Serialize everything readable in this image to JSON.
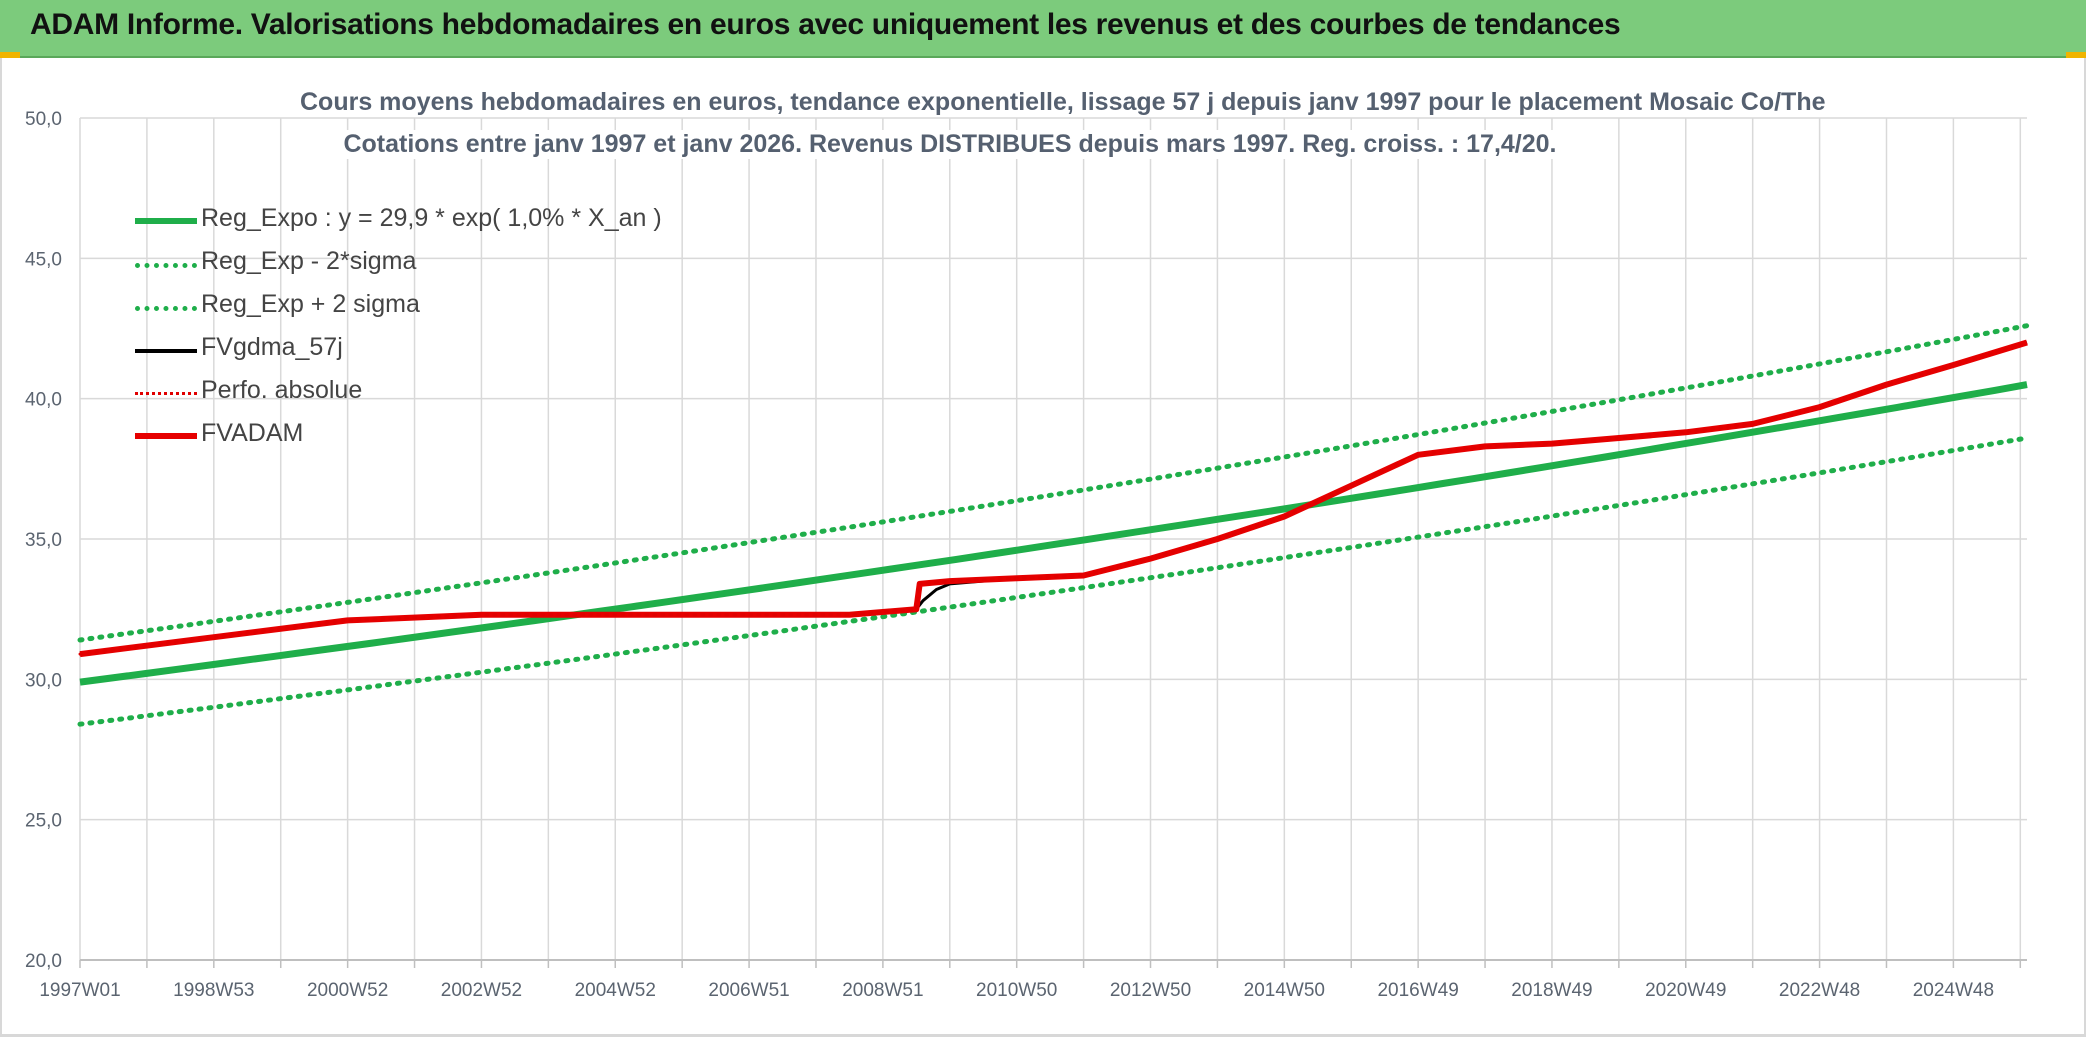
{
  "header": {
    "title": "ADAM Informe. Valorisations hebdomadaires en euros avec uniquement les revenus et des courbes de tendances"
  },
  "colors": {
    "header_bg": "#7ccb7c",
    "reg_expo": "#1fae4a",
    "reg_dotted": "#1fae4a",
    "fvgdma": "#000000",
    "perfo": "#e00000",
    "fvadam": "#e60000",
    "grid": "#d9d9d9"
  },
  "chart_data": {
    "type": "line",
    "title_line1": "Cours moyens hebdomadaires en euros, tendance exponentielle, lissage 57 j depuis janv 1997 pour le placement Mosaic Co/The",
    "title_line2": "Cotations entre janv 1997 et janv 2026. Revenus DISTRIBUES depuis mars 1997. Reg. croiss. : 17,4/20.",
    "xlabel": "",
    "ylabel": "",
    "ylim": [
      20,
      50
    ],
    "y_ticks": [
      "20,0",
      "25,0",
      "30,0",
      "35,0",
      "40,0",
      "45,0",
      "50,0"
    ],
    "x_tick_labels": [
      "1997W01",
      "1998W53",
      "2000W52",
      "2002W52",
      "2004W52",
      "2006W51",
      "2008W51",
      "2010W50",
      "2012W50",
      "2014W50",
      "2016W49",
      "2018W49",
      "2020W49",
      "2022W48",
      "2024W48"
    ],
    "x_tick_years": [
      1997.0,
      1999.0,
      2001.0,
      2003.0,
      2005.0,
      2007.0,
      2009.0,
      2011.0,
      2013.0,
      2015.0,
      2017.0,
      2019.0,
      2021.0,
      2023.0,
      2025.0
    ],
    "xlim": [
      1997.0,
      2026.1
    ],
    "grid": true,
    "legend_position": "top-left",
    "series": [
      {
        "name": "Reg_Expo : y = 29,9 * exp( 1,0% *  X_an )",
        "style": "solid-thick",
        "x": [
          1997.0,
          2026.1
        ],
        "y": [
          29.9,
          40.5
        ]
      },
      {
        "name": "Reg_Exp - 2*sigma",
        "style": "dotted",
        "x": [
          1997.0,
          2026.1
        ],
        "y": [
          28.4,
          38.6
        ]
      },
      {
        "name": "Reg_Exp + 2 sigma",
        "style": "dotted",
        "x": [
          1997.0,
          2026.1
        ],
        "y": [
          31.4,
          42.6
        ]
      },
      {
        "name": "FVgdma_57j",
        "style": "solid-thin",
        "x": [
          1997.0,
          1999.0,
          2001.0,
          2003.0,
          2005.0,
          2007.0,
          2008.5,
          2009.5,
          2009.6,
          2009.8,
          2010.0,
          2011.0,
          2012.0,
          2013.0,
          2014.0,
          2015.0,
          2016.0,
          2017.0,
          2018.0,
          2019.0,
          2020.0,
          2021.0,
          2022.0,
          2023.0,
          2024.0,
          2025.0,
          2026.1
        ],
        "y": [
          30.9,
          31.5,
          32.1,
          32.3,
          32.3,
          32.3,
          32.3,
          32.5,
          32.8,
          33.2,
          33.4,
          33.6,
          33.7,
          34.3,
          35.0,
          35.8,
          36.9,
          38.0,
          38.3,
          38.4,
          38.6,
          38.8,
          39.1,
          39.7,
          40.5,
          41.2,
          42.0
        ]
      },
      {
        "name": "Perfo. absolue",
        "style": "dotted-red",
        "x": [
          1997.0,
          1999.0,
          2001.0,
          2003.0,
          2005.0,
          2007.0,
          2008.5,
          2009.5,
          2009.55,
          2010.0,
          2011.0,
          2012.0,
          2013.0,
          2014.0,
          2015.0,
          2016.0,
          2017.0,
          2018.0,
          2019.0,
          2020.0,
          2021.0,
          2022.0,
          2023.0,
          2024.0,
          2025.0,
          2026.1
        ],
        "y": [
          30.9,
          31.5,
          32.1,
          32.3,
          32.3,
          32.3,
          32.3,
          32.5,
          33.4,
          33.5,
          33.6,
          33.7,
          34.3,
          35.0,
          35.8,
          36.9,
          38.0,
          38.3,
          38.4,
          38.6,
          38.8,
          39.1,
          39.7,
          40.5,
          41.2,
          42.0
        ]
      },
      {
        "name": "FVADAM",
        "style": "solid-thick-red",
        "x": [
          1997.0,
          1999.0,
          2001.0,
          2003.0,
          2005.0,
          2007.0,
          2008.5,
          2009.5,
          2009.55,
          2010.0,
          2011.0,
          2012.0,
          2013.0,
          2014.0,
          2015.0,
          2016.0,
          2017.0,
          2018.0,
          2019.0,
          2020.0,
          2021.0,
          2022.0,
          2023.0,
          2024.0,
          2025.0,
          2026.1
        ],
        "y": [
          30.9,
          31.5,
          32.1,
          32.3,
          32.3,
          32.3,
          32.3,
          32.5,
          33.4,
          33.5,
          33.6,
          33.7,
          34.3,
          35.0,
          35.8,
          36.9,
          38.0,
          38.3,
          38.4,
          38.6,
          38.8,
          39.1,
          39.7,
          40.5,
          41.2,
          42.0
        ]
      }
    ]
  }
}
